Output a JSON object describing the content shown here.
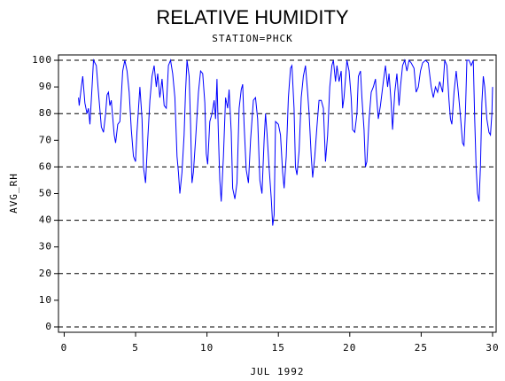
{
  "chart_data": {
    "type": "line",
    "title": "RELATIVE HUMIDITY",
    "subtitle": "STATION=PHCK",
    "x_label": "JUL 1992",
    "y_label": "AVG_RH",
    "xlim": [
      -0.4,
      30.25
    ],
    "ylim": [
      -2,
      102
    ],
    "xticks": [
      0,
      5,
      10,
      15,
      20,
      25,
      30
    ],
    "yticks": [
      0,
      10,
      20,
      30,
      40,
      50,
      60,
      70,
      80,
      90,
      100
    ],
    "grid_lines": [
      0,
      20,
      40,
      60,
      80,
      100
    ],
    "x": [
      1.0,
      1.05,
      1.2,
      1.3,
      1.45,
      1.6,
      1.7,
      1.8,
      1.95,
      2.05,
      2.25,
      2.4,
      2.6,
      2.75,
      2.9,
      3.0,
      3.1,
      3.2,
      3.3,
      3.5,
      3.6,
      3.75,
      3.9,
      4.1,
      4.25,
      4.4,
      4.55,
      4.7,
      4.85,
      5.0,
      5.1,
      5.3,
      5.45,
      5.55,
      5.7,
      5.85,
      6.0,
      6.15,
      6.3,
      6.45,
      6.55,
      6.7,
      6.85,
      7.0,
      7.15,
      7.3,
      7.45,
      7.6,
      7.75,
      7.9,
      8.0,
      8.1,
      8.25,
      8.4,
      8.5,
      8.6,
      8.75,
      8.85,
      8.95,
      9.05,
      9.2,
      9.4,
      9.55,
      9.7,
      9.85,
      9.95,
      10.05,
      10.2,
      10.35,
      10.5,
      10.6,
      10.7,
      10.8,
      10.9,
      11.0,
      11.15,
      11.3,
      11.45,
      11.55,
      11.7,
      11.8,
      11.95,
      12.1,
      12.25,
      12.4,
      12.5,
      12.6,
      12.75,
      12.9,
      13.05,
      13.25,
      13.4,
      13.55,
      13.7,
      13.85,
      14.0,
      14.1,
      14.2,
      14.35,
      14.5,
      14.6,
      14.7,
      14.8,
      15.0,
      15.15,
      15.3,
      15.4,
      15.55,
      15.7,
      15.85,
      15.95,
      16.1,
      16.2,
      16.3,
      16.45,
      16.6,
      16.75,
      16.9,
      17.05,
      17.15,
      17.3,
      17.4,
      17.55,
      17.7,
      17.85,
      18.0,
      18.15,
      18.3,
      18.45,
      18.6,
      18.75,
      18.85,
      19.0,
      19.1,
      19.25,
      19.4,
      19.5,
      19.6,
      19.8,
      19.95,
      20.1,
      20.2,
      20.35,
      20.5,
      20.6,
      20.75,
      20.85,
      21.0,
      21.1,
      21.2,
      21.35,
      21.5,
      21.65,
      21.8,
      21.9,
      22.0,
      22.15,
      22.35,
      22.5,
      22.65,
      22.75,
      22.9,
      23.0,
      23.15,
      23.3,
      23.45,
      23.55,
      23.7,
      23.85,
      24.0,
      24.15,
      24.3,
      24.5,
      24.65,
      24.8,
      24.95,
      25.1,
      25.3,
      25.5,
      25.7,
      25.85,
      26.0,
      26.15,
      26.3,
      26.5,
      26.65,
      26.8,
      26.95,
      27.05,
      27.15,
      27.3,
      27.45,
      27.6,
      27.75,
      27.9,
      28.0,
      28.1,
      28.2,
      28.35,
      28.5,
      28.65,
      28.75,
      28.85,
      28.95,
      29.05,
      29.15,
      29.25,
      29.35,
      29.45,
      29.6,
      29.75,
      29.85,
      29.95,
      30.0
    ],
    "series": [
      {
        "name": "AVG_RH",
        "color": "#0000ff",
        "values": [
          86,
          83,
          90,
          94,
          84,
          80,
          82,
          76,
          90,
          100,
          98,
          88,
          75,
          73,
          80,
          87,
          88,
          83,
          85,
          72,
          69,
          76,
          77,
          96,
          100,
          96,
          88,
          74,
          64,
          62,
          73,
          90,
          78,
          60,
          54,
          70,
          85,
          94,
          98,
          90,
          95,
          86,
          93,
          83,
          82,
          98,
          100,
          95,
          86,
          64,
          58,
          50,
          58,
          72,
          88,
          100,
          94,
          76,
          54,
          58,
          70,
          88,
          96,
          95,
          84,
          65,
          61,
          77,
          80,
          85,
          78,
          93,
          72,
          55,
          47,
          64,
          86,
          82,
          89,
          73,
          52,
          48,
          54,
          82,
          89,
          91,
          76,
          59,
          54,
          70,
          85,
          86,
          78,
          55,
          50,
          70,
          80,
          73,
          60,
          48,
          38,
          42,
          77,
          76,
          72,
          58,
          52,
          64,
          86,
          97,
          98,
          82,
          60,
          57,
          66,
          86,
          94,
          98,
          88,
          80,
          64,
          56,
          64,
          75,
          85,
          85,
          82,
          62,
          72,
          90,
          98,
          100,
          92,
          98,
          92,
          96,
          82,
          86,
          100,
          96,
          86,
          74,
          73,
          80,
          94,
          96,
          86,
          74,
          60,
          62,
          78,
          88,
          90,
          93,
          85,
          78,
          83,
          92,
          98,
          90,
          95,
          84,
          74,
          88,
          95,
          83,
          90,
          98,
          100,
          96,
          100,
          99,
          97,
          88,
          90,
          96,
          99,
          100,
          99,
          90,
          86,
          90,
          88,
          92,
          88,
          100,
          98,
          85,
          78,
          76,
          88,
          96,
          88,
          79,
          69,
          68,
          80,
          100,
          100,
          98,
          100,
          78,
          60,
          50,
          47,
          60,
          84,
          94,
          90,
          78,
          73,
          72,
          80,
          90
        ]
      }
    ]
  }
}
